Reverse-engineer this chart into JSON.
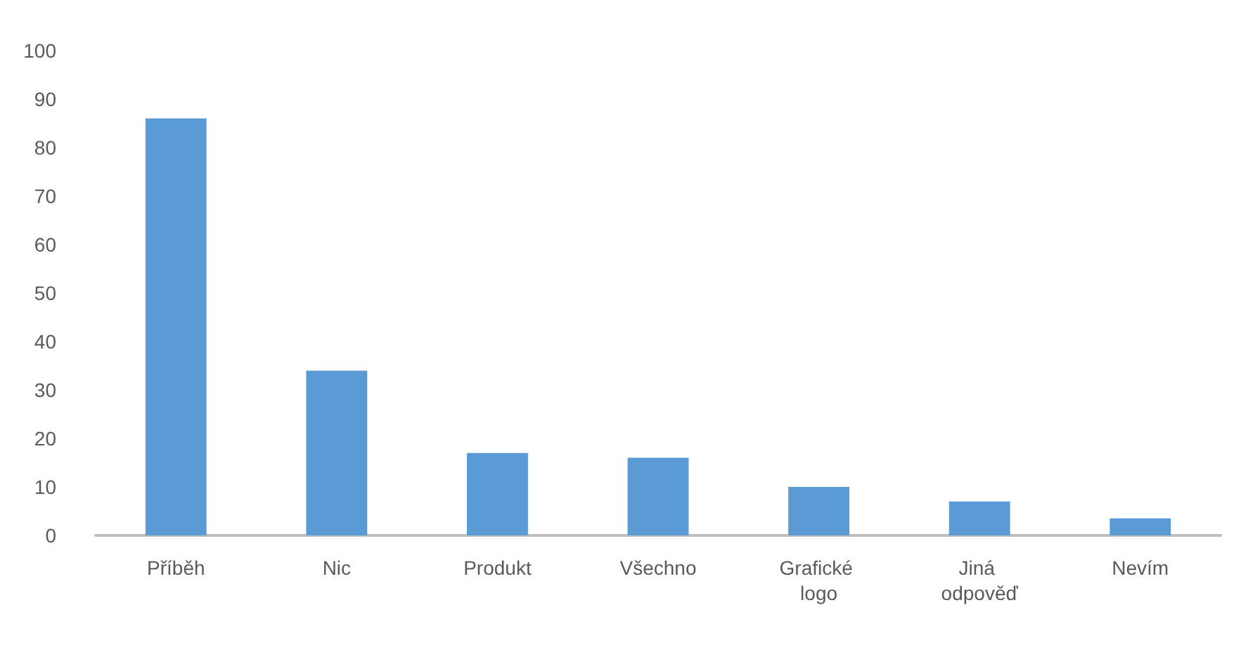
{
  "chart_data": {
    "type": "bar",
    "categories": [
      "Příběh",
      "Nic",
      "Produkt",
      "Všechno",
      "Grafické logo",
      "Jiná odpověď",
      "Nevím"
    ],
    "values": [
      86,
      34,
      17,
      16,
      10,
      7,
      3.5
    ],
    "color": "#5b9bd5",
    "ylim": [
      0,
      100
    ],
    "yticks": [
      0,
      10,
      20,
      30,
      40,
      50,
      60,
      70,
      80,
      90,
      100
    ],
    "grid": false
  }
}
